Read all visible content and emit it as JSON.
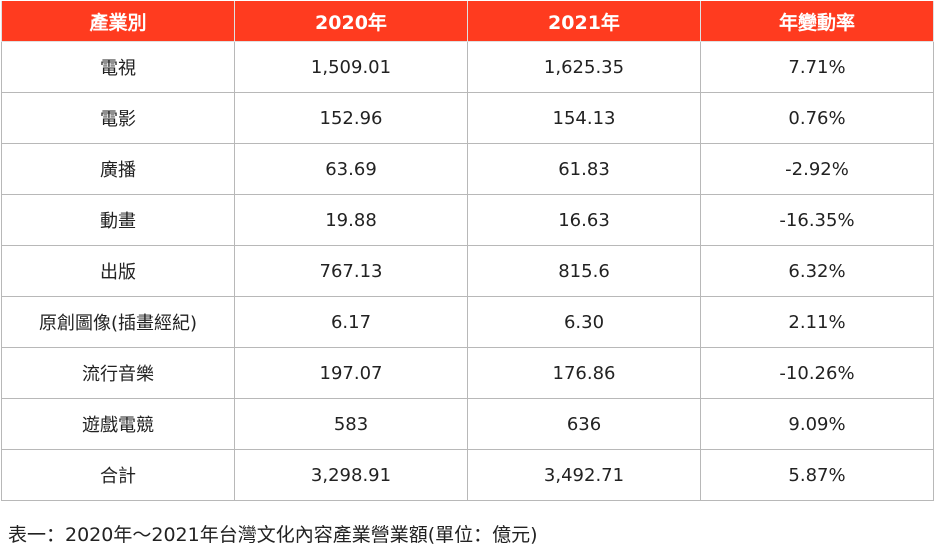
{
  "table": {
    "headers": [
      "產業別",
      "2020年",
      "2021年",
      "年變動率"
    ],
    "rows": [
      [
        "電視",
        "1,509.01",
        "1,625.35",
        "7.71%"
      ],
      [
        "電影",
        "152.96",
        "154.13",
        "0.76%"
      ],
      [
        "廣播",
        "63.69",
        "61.83",
        "-2.92%"
      ],
      [
        "動畫",
        "19.88",
        "16.63",
        "-16.35%"
      ],
      [
        "出版",
        "767.13",
        "815.6",
        "6.32%"
      ],
      [
        "原創圖像(插畫經紀)",
        "6.17",
        "6.30",
        "2.11%"
      ],
      [
        "流行音樂",
        "197.07",
        "176.86",
        "-10.26%"
      ],
      [
        "遊戲電競",
        "583",
        "636",
        "9.09%"
      ],
      [
        "合計",
        "3,298.91",
        "3,492.71",
        "5.87%"
      ]
    ]
  },
  "caption": "表一：2020年～2021年台灣文化內容產業營業額(單位：億元)",
  "colors": {
    "header_bg": "#ff3b1f",
    "header_text": "#ffffff",
    "border": "#b8b8b8"
  }
}
